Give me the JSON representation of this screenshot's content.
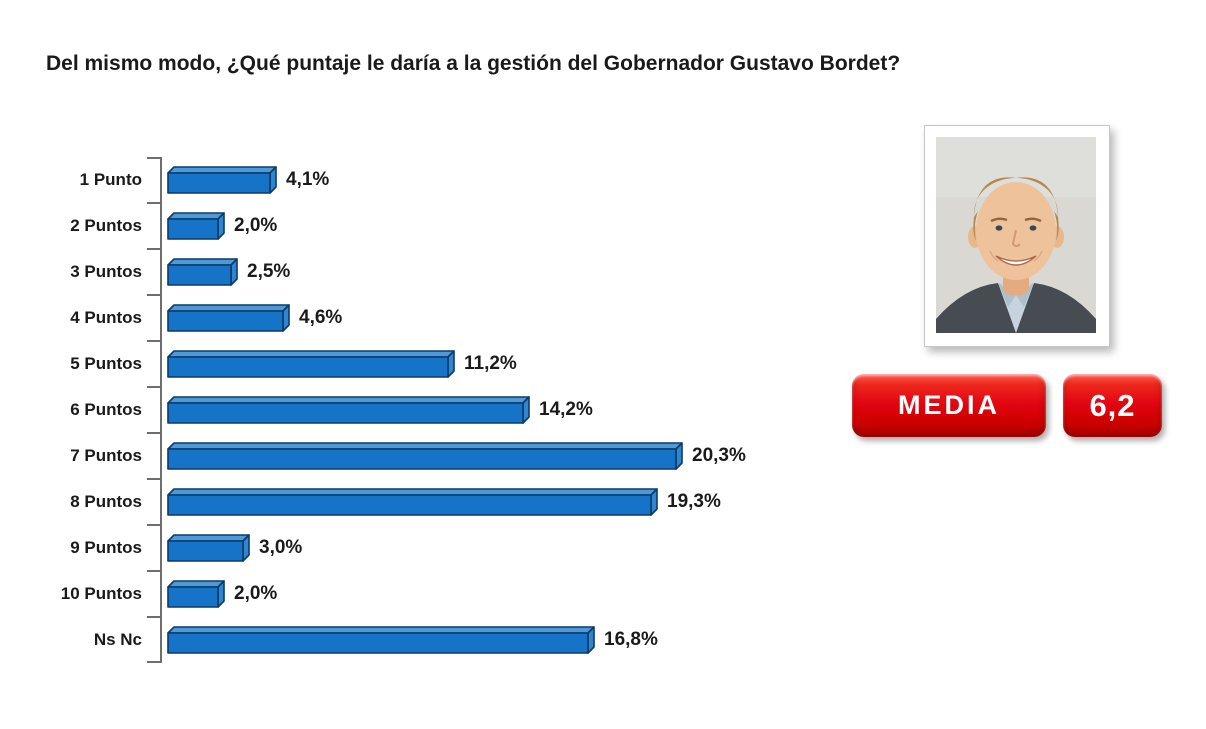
{
  "title": "Del mismo modo, ¿Qué puntaje le daría a la gestión del Gobernador Gustavo Bordet?",
  "chart_data": {
    "type": "bar",
    "orientation": "horizontal",
    "title": "Del mismo modo, ¿Qué puntaje le daría a la gestión del Gobernador Gustavo Bordet?",
    "categories": [
      "1 Punto",
      "2 Puntos",
      "3 Puntos",
      "4 Puntos",
      "5 Puntos",
      "6 Puntos",
      "7 Puntos",
      "8 Puntos",
      "9 Puntos",
      "10 Puntos",
      "Ns Nc"
    ],
    "values": [
      4.1,
      2.0,
      2.5,
      4.6,
      11.2,
      14.2,
      20.3,
      19.3,
      3.0,
      2.0,
      16.8
    ],
    "value_labels": [
      "4,1%",
      "2,0%",
      "2,5%",
      "4,6%",
      "11,2%",
      "14,2%",
      "20,3%",
      "19,3%",
      "3,0%",
      "2,0%",
      "16,8%"
    ],
    "xlabel": "",
    "ylabel": "",
    "xlim": [
      0,
      21
    ],
    "grid": false,
    "legend": false,
    "style_3d": true,
    "bar_color": "#1573c8",
    "bar_top_color": "#4e9ad8",
    "bar_end_color": "#2f86d0",
    "bar_outline_color": "#0d3a67",
    "axis_color": "#6e6e6e"
  },
  "media": {
    "label": "MEDIA",
    "value": "6,2",
    "badge_color": "#e30613"
  },
  "portrait": {
    "description": "Photo of Gustavo Bordet"
  }
}
